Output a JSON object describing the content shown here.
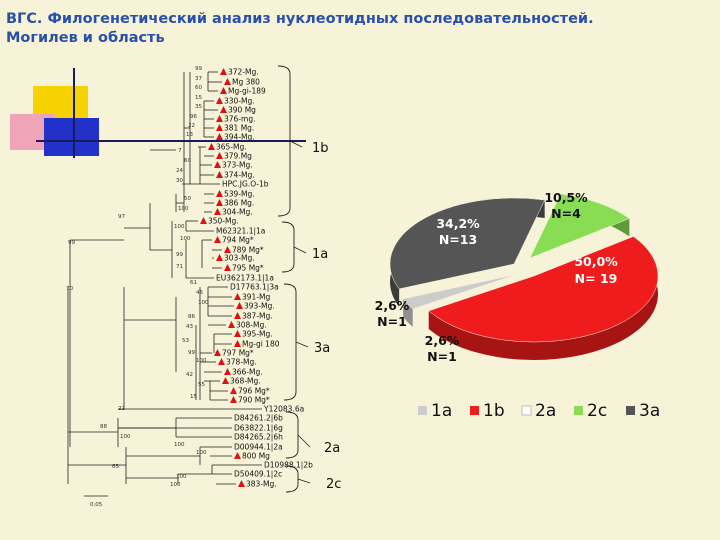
{
  "title": {
    "line1": "ВГС. Филогенетический анализ нуклеотидных последовательностей.",
    "line2": "Могилев и область"
  },
  "colors": {
    "1a": "#cccccc",
    "1b": "#ee1c1c",
    "2a": "#ffffff",
    "2c": "#88dd55",
    "3a": "#555555",
    "marker": "#dd1111",
    "title": "#2a50a8",
    "background": "#f6f3d9"
  },
  "tree": {
    "scale_label": "0,05",
    "clades": [
      "1b",
      "1a",
      "3a",
      "2a",
      "2c"
    ],
    "leaves": [
      {
        "label": "372-Mg.",
        "marker": true
      },
      {
        "label": "Mg 380",
        "marker": true
      },
      {
        "label": "Mg-gi-189",
        "marker": true
      },
      {
        "label": "330-Mg.",
        "marker": true
      },
      {
        "label": "390 Mg",
        "marker": true
      },
      {
        "label": "376-mg.",
        "marker": true
      },
      {
        "label": "381 Mg.",
        "marker": true
      },
      {
        "label": "394-Mg.",
        "marker": true
      },
      {
        "label": "365-Mg.",
        "marker": true
      },
      {
        "label": "379.Mg",
        "marker": true
      },
      {
        "label": "373-Mg.",
        "marker": true
      },
      {
        "label": "374-Mg.",
        "marker": true
      },
      {
        "label": "HPC.JG.O-1b",
        "marker": false
      },
      {
        "label": "539-Mg.",
        "marker": true
      },
      {
        "label": "386 Mg.",
        "marker": true
      },
      {
        "label": "304-Mg.",
        "marker": true
      },
      {
        "label": "350-Mg.",
        "marker": true
      },
      {
        "label": "M62321.1|1a",
        "marker": false
      },
      {
        "label": "794 Mg*",
        "marker": true
      },
      {
        "label": "789 Mg*",
        "marker": true
      },
      {
        "label": "303-Mg.",
        "marker": true
      },
      {
        "label": "795 Mg*",
        "marker": true
      },
      {
        "label": "EU362173.1|1a",
        "marker": false
      },
      {
        "label": "D17763.1|3a",
        "marker": false
      },
      {
        "label": "391-Mg",
        "marker": true
      },
      {
        "label": "393-Mg.",
        "marker": true
      },
      {
        "label": "387-Mg.",
        "marker": true
      },
      {
        "label": "308-Mg.",
        "marker": true
      },
      {
        "label": "395-Mg.",
        "marker": true
      },
      {
        "label": "Mg-gi 180",
        "marker": true
      },
      {
        "label": "797 Mg*",
        "marker": true
      },
      {
        "label": "378-Mg.",
        "marker": true
      },
      {
        "label": "366-Mg.",
        "marker": true
      },
      {
        "label": "368-Mg.",
        "marker": true
      },
      {
        "label": "796 Mg*",
        "marker": true
      },
      {
        "label": "790 Mg*",
        "marker": true
      },
      {
        "label": "Y12083.6a",
        "marker": false
      },
      {
        "label": "D84261.2|6b",
        "marker": false
      },
      {
        "label": "D63822.1|6g",
        "marker": false
      },
      {
        "label": "D84265.2|6h",
        "marker": false
      },
      {
        "label": "D00944.1|2a",
        "marker": false
      },
      {
        "label": "800 Mg",
        "marker": true
      },
      {
        "label": "D10988.1|2b",
        "marker": false
      },
      {
        "label": "D50409.1|2c",
        "marker": false
      },
      {
        "label": "383-Mg.",
        "marker": true
      }
    ],
    "bootstrap": [
      "99",
      "37",
      "60",
      "15",
      "35",
      "96",
      "22",
      "13",
      "7",
      "60",
      "24",
      "30",
      "50",
      "100",
      "97",
      "100",
      "100",
      "99",
      "99",
      "71",
      "61",
      "46",
      "100",
      "86",
      "43",
      "53",
      "99",
      "100",
      "42",
      "55",
      "15",
      "70",
      "22",
      "88",
      "100",
      "65",
      "100",
      "100",
      "100",
      "100"
    ]
  },
  "chart_data": {
    "type": "pie",
    "title": "",
    "slices": [
      {
        "name": "1a",
        "count": 1,
        "percent": 2.6,
        "label": "2,6%",
        "n_label": "N=1",
        "color": "#cccccc"
      },
      {
        "name": "1b",
        "count": 19,
        "percent": 50.0,
        "label": "50,0%",
        "n_label": "N= 19",
        "color": "#ee1c1c"
      },
      {
        "name": "2a",
        "count": 0,
        "percent": 0,
        "label": "",
        "n_label": "",
        "color": "#ffffff"
      },
      {
        "name": "2c",
        "count": 4,
        "percent": 10.5,
        "label": "10,5%",
        "n_label": "N=4",
        "color": "#88dd55"
      },
      {
        "name": "3a",
        "count": 13,
        "percent": 34.2,
        "label": "34,2%",
        "n_label": "N=13",
        "color": "#555555"
      }
    ],
    "outer_labels": [
      {
        "label": "2,6%",
        "n_label": "N=1"
      },
      {
        "label": "2,6%",
        "n_label": "N=1"
      }
    ],
    "legend": [
      "1a",
      "1b",
      "2a",
      "2c",
      "3a"
    ],
    "legend_position": "bottom"
  }
}
